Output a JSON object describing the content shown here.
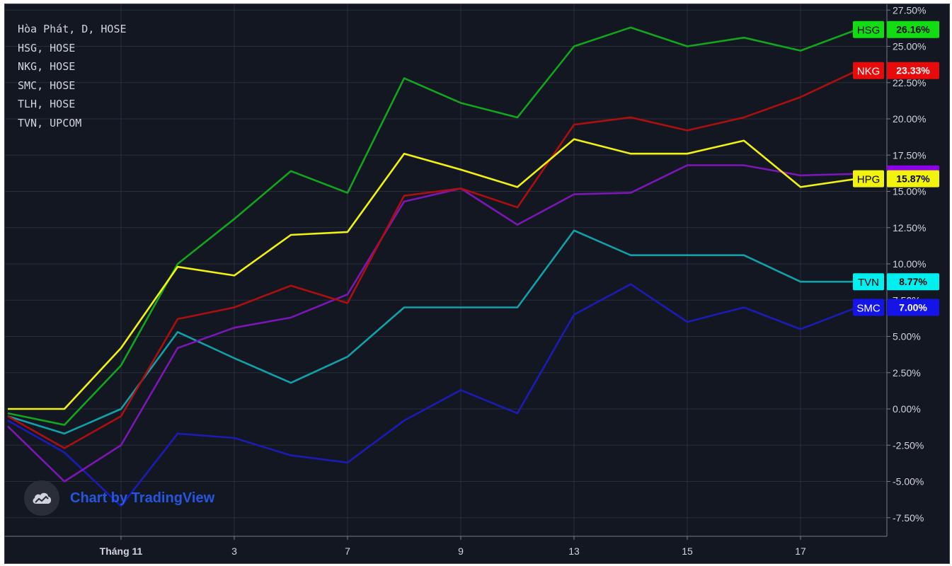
{
  "legend": {
    "lines": [
      "Hòa Phát, D, HOSE",
      "HSG, HOSE",
      "NKG, HOSE",
      "SMC, HOSE",
      "TLH, HOSE",
      "TVN, UPCOM"
    ]
  },
  "watermark": {
    "text": "Chart by TradingView",
    "icon": "tradingview-cloud-icon"
  },
  "chart_data": {
    "type": "line",
    "ylim": [
      -9.0,
      28.2
    ],
    "y_ticks": [
      "27.50%",
      "25.00%",
      "22.50%",
      "20.00%",
      "17.50%",
      "15.00%",
      "12.50%",
      "10.00%",
      "7.50%",
      "5.00%",
      "2.50%",
      "0.00%",
      "-2.50%",
      "-5.00%",
      "-7.50%"
    ],
    "y_tick_values": [
      27.5,
      25,
      22.5,
      20,
      17.5,
      15,
      12.5,
      10,
      7.5,
      5,
      2.5,
      0,
      -2.5,
      -5,
      -7.5
    ],
    "x_ticks": [
      {
        "label": "Tháng 11",
        "index": 2
      },
      {
        "label": "3",
        "index": 4
      },
      {
        "label": "7",
        "index": 6
      },
      {
        "label": "9",
        "index": 8
      },
      {
        "label": "13",
        "index": 10
      },
      {
        "label": "15",
        "index": 12
      },
      {
        "label": "17",
        "index": 14
      }
    ],
    "x_count": 16,
    "grid": true,
    "series": [
      {
        "name": "SMC",
        "color": "#1b1bb5",
        "label_bg": "#1414e8",
        "label_fg": "#ffffff",
        "last_label": "7.00%",
        "values": [
          -0.8,
          -3.0,
          -6.7,
          -1.7,
          -2.0,
          -3.2,
          -3.7,
          -0.8,
          1.3,
          -0.3,
          6.5,
          8.6,
          6.0,
          7.0,
          5.5,
          7.0
        ]
      },
      {
        "name": "TVN",
        "color": "#10a1a9",
        "label_bg": "#00f0f0",
        "label_fg": "#000000",
        "last_label": "8.77%",
        "values": [
          -0.5,
          -1.7,
          0.0,
          5.3,
          3.5,
          1.8,
          3.6,
          7.0,
          7.0,
          7.0,
          12.3,
          10.6,
          10.6,
          10.6,
          8.77,
          8.77
        ]
      },
      {
        "name": "",
        "color": "#7a17b5",
        "label_bg": "#8b00e8",
        "label_fg": "#ffffff",
        "last_label": "16.21%",
        "values": [
          -1.2,
          -5.0,
          -2.5,
          4.2,
          5.6,
          6.3,
          7.9,
          14.3,
          15.2,
          12.7,
          14.8,
          14.9,
          16.8,
          16.8,
          16.1,
          16.21
        ]
      },
      {
        "name": "NKG",
        "color": "#ad0f0f",
        "label_bg": "#e80b0b",
        "label_fg": "#ffffff",
        "last_label": "23.33%",
        "values": [
          -0.5,
          -2.7,
          -0.5,
          6.2,
          7.0,
          8.5,
          7.3,
          14.7,
          15.2,
          13.9,
          19.6,
          20.1,
          19.2,
          20.1,
          21.5,
          23.33
        ]
      },
      {
        "name": "HSG",
        "color": "#12a51e",
        "label_bg": "#12dd12",
        "label_fg": "#000000",
        "last_label": "26.16%",
        "values": [
          -0.3,
          -1.1,
          3.0,
          10.0,
          13.1,
          16.4,
          14.9,
          22.8,
          21.1,
          20.1,
          25.0,
          26.3,
          25.0,
          25.6,
          24.7,
          26.16
        ]
      },
      {
        "name": "HPG",
        "color": "#f2f20f",
        "label_bg": "#f2f20f",
        "label_fg": "#000000",
        "last_label": "15.87%",
        "values": [
          0.0,
          0.0,
          4.2,
          9.8,
          9.2,
          12.0,
          12.2,
          17.6,
          16.5,
          15.3,
          18.6,
          17.6,
          17.6,
          18.5,
          15.3,
          15.87
        ]
      }
    ],
    "hidden_value_label": "7.50%"
  }
}
